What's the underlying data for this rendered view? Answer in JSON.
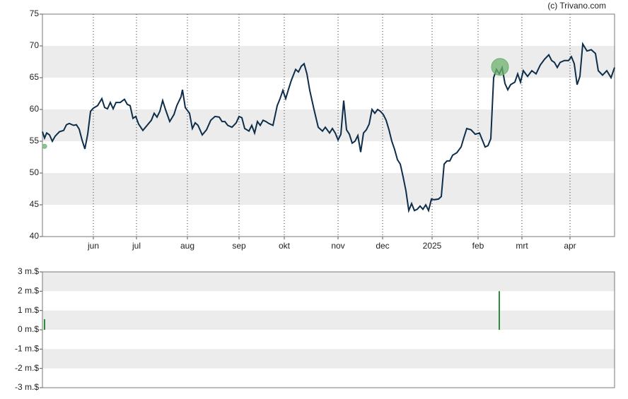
{
  "credit": "(c) Trivano.com",
  "chart_data": [
    {
      "type": "line",
      "color": "#0d2d4a",
      "x": [
        0,
        1.5,
        3,
        5,
        7,
        9,
        12,
        15,
        17,
        19,
        22,
        24,
        26,
        28,
        30,
        32,
        34,
        36,
        39,
        42,
        44,
        46,
        48,
        50,
        52,
        55,
        58,
        60,
        62,
        64,
        66,
        68,
        71,
        74,
        77,
        79,
        81,
        83,
        85,
        87,
        90,
        93,
        95,
        98,
        99,
        101,
        104,
        106,
        108,
        110,
        113,
        116,
        119,
        122,
        125,
        127,
        129,
        131,
        134,
        137,
        139,
        141,
        143,
        146,
        148,
        150,
        152,
        154,
        156,
        158,
        160,
        163,
        166,
        168,
        170,
        172,
        174,
        176,
        179,
        181,
        183,
        185,
        187,
        189,
        192,
        195,
        198,
        200,
        203,
        205,
        207,
        209,
        211,
        213,
        215,
        217,
        219,
        221,
        223,
        225,
        227,
        229,
        231,
        233,
        235,
        237,
        239,
        241,
        243,
        245,
        247,
        249,
        251,
        253,
        255,
        257,
        259,
        261,
        263,
        265,
        267,
        269,
        271,
        273,
        275,
        277,
        280,
        282,
        284,
        286,
        288,
        290,
        293,
        296,
        298,
        300,
        303,
        306,
        309,
        311,
        313,
        315,
        317,
        319,
        321,
        323,
        325,
        327,
        329,
        331,
        334,
        336,
        338,
        340,
        343,
        346,
        349,
        352,
        355,
        358,
        360,
        362,
        364,
        366,
        369,
        372,
        374,
        376,
        378,
        380,
        382,
        385,
        388,
        391,
        393,
        396,
        399,
        402,
        404.5
      ],
      "values": [
        56.5,
        55.5,
        56.3,
        56,
        55,
        55.8,
        56.5,
        56.7,
        57.6,
        57.8,
        57.5,
        57.6,
        56.9,
        55.2,
        53.8,
        56.1,
        59.7,
        60.2,
        60.6,
        61.7,
        60.3,
        60.1,
        61.1,
        60.1,
        61.1,
        61.1,
        61.6,
        60.8,
        60.6,
        58.6,
        58.9,
        57.7,
        56.7,
        57.5,
        58.3,
        59.4,
        58.8,
        59.7,
        61.4,
        60,
        58.1,
        59.2,
        60.6,
        62,
        63.1,
        60.3,
        59.4,
        57,
        57.9,
        57.5,
        56,
        56.8,
        58.3,
        58.9,
        58.8,
        58.1,
        58.1,
        57.5,
        57.2,
        57.9,
        58.9,
        58.7,
        57,
        56.6,
        57.5,
        56.3,
        58.1,
        57.5,
        58.3,
        58.1,
        57.8,
        57.5,
        60.6,
        61.7,
        63,
        61.7,
        63.2,
        64.6,
        66.3,
        65.9,
        66.8,
        67.2,
        65.6,
        63,
        60,
        57.2,
        56.6,
        57.2,
        56.3,
        57,
        56.3,
        55.2,
        56.1,
        61.4,
        56.8,
        56.1,
        54.7,
        55,
        55.9,
        53.3,
        56.3,
        56.8,
        57.7,
        60,
        59.4,
        60,
        59.7,
        59.2,
        58.3,
        56.8,
        55,
        53.7,
        52.1,
        51.4,
        49.4,
        47.2,
        44.1,
        45.2,
        44.1,
        44.3,
        44.8,
        44.3,
        45,
        44.1,
        45.9,
        45.8,
        45.9,
        46.3,
        51.4,
        51.9,
        51.9,
        52.8,
        53.2,
        54.1,
        55.6,
        57,
        56.8,
        56.1,
        56.3,
        55.2,
        54.1,
        54.3,
        55.4,
        65,
        66.3,
        65.6,
        66.6,
        64.1,
        63.1,
        63.9,
        64.3,
        65.6,
        64.3,
        66.1,
        65.2,
        66.1,
        65.6,
        67,
        67.9,
        68.6,
        67.7,
        67.4,
        66.6,
        67.4,
        67.7,
        67.7,
        68.3,
        67.2,
        63.9,
        65.2,
        70.3,
        69.2,
        69.4,
        68.8,
        66.1,
        65.4,
        66.1,
        65,
        66.6
      ],
      "markers": {
        "x": [
          1.5,
          323.5
        ],
        "y": [
          54.2,
          66.7
        ],
        "color": "#6db26d"
      },
      "xlim": [
        0,
        404.5
      ],
      "xticks": [
        {
          "value": 36,
          "label": "jun"
        },
        {
          "value": 66.5,
          "label": "jul"
        },
        {
          "value": 102.5,
          "label": "aug"
        },
        {
          "value": 139,
          "label": "sep"
        },
        {
          "value": 171,
          "label": "okt"
        },
        {
          "value": 209,
          "label": "nov"
        },
        {
          "value": 240.5,
          "label": "dec"
        },
        {
          "value": 275.5,
          "label": "2025"
        },
        {
          "value": 308,
          "label": "feb"
        },
        {
          "value": 339,
          "label": "mrt"
        },
        {
          "value": 373,
          "label": "apr"
        }
      ],
      "ylim": [
        40,
        75
      ],
      "yticks": [
        40,
        45,
        50,
        55,
        60,
        65,
        70,
        75
      ],
      "grid": true
    },
    {
      "type": "bar",
      "color": "#2e8b3e",
      "x": [
        1.5,
        323
      ],
      "values": [
        0.55,
        2
      ],
      "xlim": [
        0,
        404.5
      ],
      "ylim": [
        -3,
        3
      ],
      "yticks": [
        {
          "value": -3,
          "label": "-3 m.$"
        },
        {
          "value": -2,
          "label": "-2 m.$"
        },
        {
          "value": -1,
          "label": "-1 m.$"
        },
        {
          "value": 0,
          "label": "0 m.$"
        },
        {
          "value": 1,
          "label": "1 m.$"
        },
        {
          "value": 2,
          "label": "2 m.$"
        },
        {
          "value": 3,
          "label": "3 m.$"
        }
      ],
      "grid": true
    }
  ]
}
